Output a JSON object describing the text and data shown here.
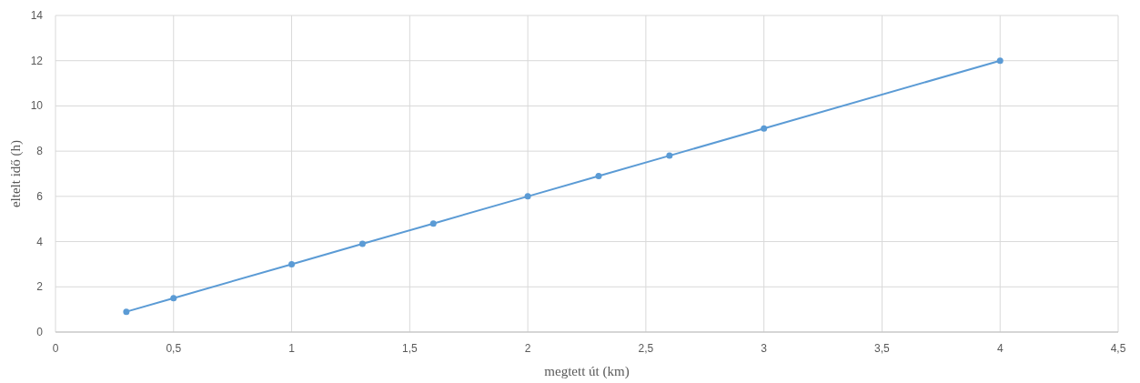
{
  "chart_data": {
    "type": "line",
    "xlabel": "megtett út (km)",
    "ylabel": "eltelt idő (h)",
    "x": [
      0.3,
      0.5,
      1,
      1.3,
      1.6,
      2,
      2.3,
      2.6,
      3,
      4
    ],
    "series": [
      {
        "color": "#5b9bd5",
        "values": [
          0.9,
          1.5,
          3,
          3.9,
          4.8,
          6,
          6.9,
          7.8,
          9,
          12
        ]
      }
    ],
    "xlim": [
      0,
      4.5
    ],
    "ylim": [
      0,
      14
    ],
    "xticks": [
      0,
      {
        "value": 0.5,
        "label": "0,5"
      },
      1,
      {
        "value": 1.5,
        "label": "1,5"
      },
      2,
      {
        "value": 2.5,
        "label": "2,5"
      },
      3,
      {
        "value": 3.5,
        "label": "3,5"
      },
      4,
      {
        "value": 4.5,
        "label": "4,5"
      }
    ],
    "yticks": [
      0,
      2,
      4,
      6,
      8,
      10,
      12,
      14
    ],
    "grid": true,
    "marker": "circle",
    "line_style": "solid"
  }
}
